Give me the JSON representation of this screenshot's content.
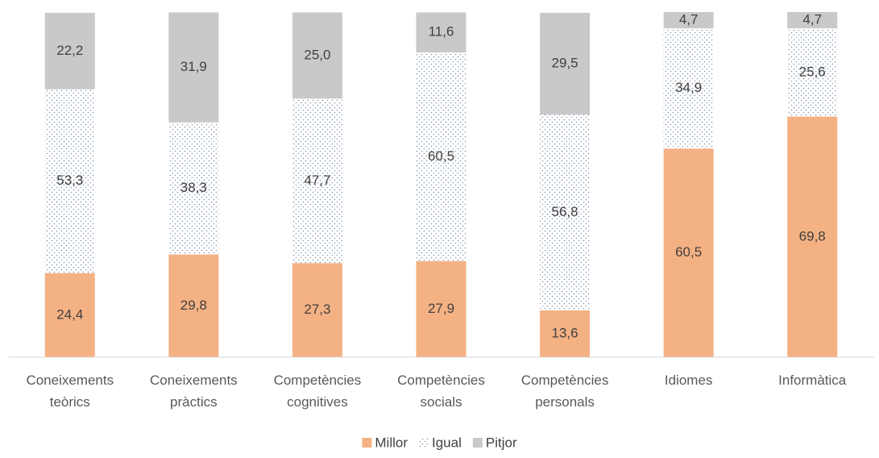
{
  "chart_data": {
    "type": "stacked_bar",
    "categories": [
      "Coneixements teòrics",
      "Coneixements pràctics",
      "Competències cognitives",
      "Competències socials",
      "Competències personals",
      "Idiomes",
      "Informàtica"
    ],
    "series": [
      {
        "name": "Millor",
        "color": "#f4b183",
        "values": [
          24.4,
          29.8,
          27.3,
          27.9,
          13.6,
          60.5,
          69.8
        ],
        "value_labels": [
          "24,4",
          "29,8",
          "27,3",
          "27,9",
          "13,6",
          "60,5",
          "69,8"
        ]
      },
      {
        "name": "Igual",
        "color": "#8497b0",
        "pattern": "dots",
        "values": [
          53.3,
          38.3,
          47.7,
          60.5,
          56.8,
          34.9,
          25.6
        ],
        "value_labels": [
          "53,3",
          "38,3",
          "47,7",
          "60,5",
          "56,8",
          "34,9",
          "25,6"
        ]
      },
      {
        "name": "Pitjor",
        "color": "#c9c9c9",
        "values": [
          22.2,
          31.9,
          25.0,
          11.6,
          29.5,
          4.7,
          4.7
        ],
        "value_labels": [
          "22,2",
          "31,9",
          "25,0",
          "11,6",
          "29,5",
          "4,7",
          "4,7"
        ]
      }
    ],
    "legend": "bottom"
  }
}
